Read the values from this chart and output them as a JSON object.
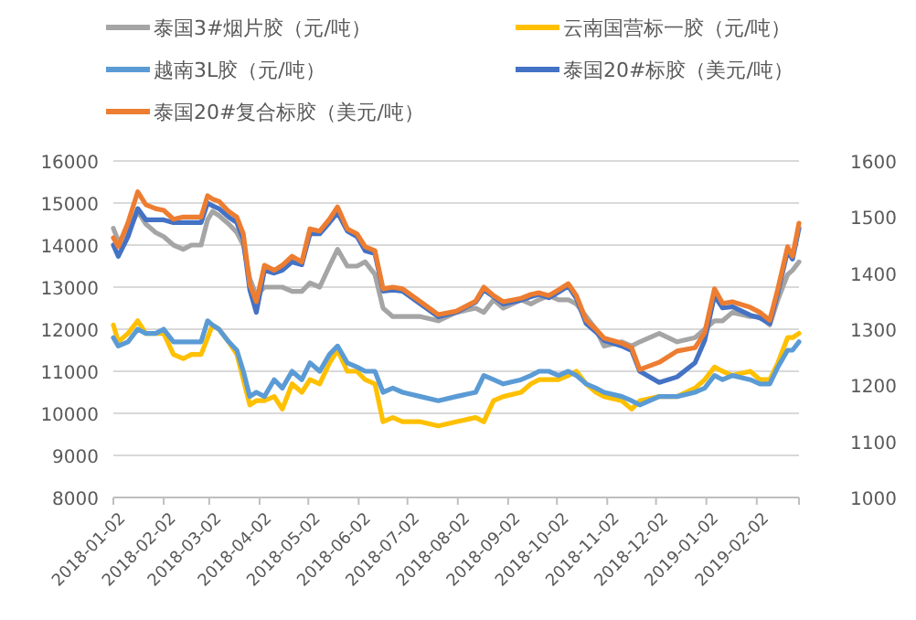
{
  "chart_data": {
    "type": "line",
    "legend": "top",
    "grid": "y",
    "line_style": "solid",
    "xlim": [
      "2018-01-02",
      "2019-02-28"
    ],
    "xticks": [
      "2018-01-02",
      "2018-02-02",
      "2018-03-02",
      "2018-04-02",
      "2018-05-02",
      "2018-06-02",
      "2018-07-02",
      "2018-08-02",
      "2018-09-02",
      "2018-10-02",
      "2018-11-02",
      "2018-12-02",
      "2019-01-02",
      "2019-02-02"
    ],
    "ylim": [
      8000,
      16000
    ],
    "yticks": [
      8000,
      9000,
      10000,
      11000,
      12000,
      13000,
      14000,
      15000,
      16000
    ],
    "y2lim": [
      1000,
      1600
    ],
    "y2ticks": [
      1000,
      1100,
      1200,
      1300,
      1400,
      1500,
      1600
    ],
    "x": [
      "2018-01-02",
      "2018-01-05",
      "2018-01-11",
      "2018-01-17",
      "2018-01-22",
      "2018-01-28",
      "2018-02-02",
      "2018-02-08",
      "2018-02-14",
      "2018-02-19",
      "2018-02-25",
      "2018-03-01",
      "2018-03-04",
      "2018-03-08",
      "2018-03-14",
      "2018-03-19",
      "2018-03-23",
      "2018-03-27",
      "2018-03-31",
      "2018-04-05",
      "2018-04-11",
      "2018-04-16",
      "2018-04-22",
      "2018-04-28",
      "2018-05-03",
      "2018-05-09",
      "2018-05-15",
      "2018-05-20",
      "2018-05-26",
      "2018-06-01",
      "2018-06-06",
      "2018-06-12",
      "2018-06-17",
      "2018-06-23",
      "2018-06-29",
      "2018-07-10",
      "2018-07-21",
      "2018-08-01",
      "2018-08-13",
      "2018-08-18",
      "2018-08-24",
      "2018-08-30",
      "2018-09-10",
      "2018-09-16",
      "2018-09-21",
      "2018-09-27",
      "2018-10-03",
      "2018-10-09",
      "2018-10-14",
      "2018-10-20",
      "2018-10-26",
      "2018-10-31",
      "2018-11-11",
      "2018-11-17",
      "2018-11-22",
      "2018-12-04",
      "2018-12-15",
      "2018-12-26",
      "2019-01-01",
      "2019-01-07",
      "2019-01-12",
      "2019-01-18",
      "2019-01-29",
      "2019-02-04",
      "2019-02-10",
      "2019-02-15",
      "2019-02-21",
      "2019-02-24",
      "2019-02-28"
    ],
    "series": [
      {
        "name": "泰国3#烟片胶（元/吨）",
        "color": "#a5a5a5",
        "values": [
          14400,
          14100,
          14300,
          14800,
          14500,
          14300,
          14200,
          14000,
          13900,
          14000,
          14000,
          14600,
          14800,
          14700,
          14500,
          14300,
          14000,
          13200,
          12800,
          13000,
          13000,
          13000,
          12900,
          12900,
          13100,
          13000,
          13500,
          13900,
          13500,
          13500,
          13600,
          13300,
          12500,
          12300,
          12300,
          12300,
          12200,
          12400,
          12500,
          12400,
          12700,
          12500,
          12700,
          12600,
          12700,
          12800,
          12700,
          12700,
          12600,
          12300,
          12000,
          11600,
          11700,
          11600,
          11700,
          11900,
          11700,
          11800,
          12000,
          12200,
          12200,
          12400,
          12300,
          12300,
          12100,
          12700,
          13300,
          13400,
          13600
        ]
      },
      {
        "name": "云南国营标一胶（元/吨）",
        "color": "#ffc000",
        "values": [
          12100,
          11700,
          11900,
          12200,
          11900,
          11900,
          11900,
          11400,
          11300,
          11400,
          11400,
          11800,
          12100,
          12000,
          11700,
          11400,
          10800,
          10200,
          10300,
          10300,
          10400,
          10100,
          10700,
          10500,
          10800,
          10700,
          11200,
          11500,
          11000,
          11000,
          10800,
          10700,
          9800,
          9900,
          9800,
          9800,
          9700,
          9800,
          9900,
          9800,
          10300,
          10400,
          10500,
          10700,
          10800,
          10800,
          10800,
          10900,
          11000,
          10700,
          10500,
          10400,
          10300,
          10100,
          10300,
          10400,
          10400,
          10600,
          10800,
          11100,
          11000,
          10900,
          11000,
          10800,
          10800,
          11200,
          11800,
          11800,
          11900
        ]
      },
      {
        "name": "越南3L胶（元/吨）",
        "color": "#5b9bd5",
        "values": [
          11800,
          11600,
          11700,
          12000,
          11900,
          11900,
          12000,
          11700,
          11700,
          11700,
          11700,
          12200,
          12100,
          12000,
          11700,
          11500,
          11000,
          10400,
          10500,
          10400,
          10800,
          10600,
          11000,
          10800,
          11200,
          11000,
          11400,
          11600,
          11200,
          11100,
          11000,
          11000,
          10500,
          10600,
          10500,
          10400,
          10300,
          10400,
          10500,
          10900,
          10800,
          10700,
          10800,
          10900,
          11000,
          11000,
          10900,
          11000,
          10900,
          10700,
          10600,
          10500,
          10400,
          10300,
          10200,
          10400,
          10400,
          10500,
          10600,
          10900,
          10800,
          10900,
          10800,
          10700,
          10700,
          11100,
          11500,
          11500,
          11700
        ]
      },
      {
        "name": "泰国20#标胶（美元/吨）",
        "color": "#4472c4",
        "axis": "y2",
        "values": [
          1450,
          1430,
          1465,
          1515,
          1495,
          1495,
          1495,
          1490,
          1490,
          1490,
          1490,
          1525,
          1520,
          1515,
          1500,
          1490,
          1460,
          1370,
          1330,
          1405,
          1400,
          1405,
          1420,
          1415,
          1470,
          1470,
          1490,
          1508,
          1475,
          1465,
          1440,
          1435,
          1368,
          1370,
          1368,
          1345,
          1322,
          1330,
          1348,
          1370,
          1358,
          1345,
          1352,
          1358,
          1362,
          1356,
          1366,
          1377,
          1355,
          1310,
          1295,
          1280,
          1270,
          1262,
          1225,
          1205,
          1215,
          1240,
          1280,
          1360,
          1338,
          1340,
          1325,
          1320,
          1310,
          1365,
          1440,
          1425,
          1480
        ]
      },
      {
        "name": "泰国20#复合标胶（美元/吨）",
        "color": "#ed7d31",
        "axis": "y2",
        "values": [
          1463,
          1447,
          1490,
          1545,
          1522,
          1515,
          1512,
          1496,
          1500,
          1500,
          1500,
          1538,
          1532,
          1528,
          1510,
          1500,
          1470,
          1380,
          1349,
          1414,
          1405,
          1414,
          1430,
          1420,
          1479,
          1475,
          1496,
          1518,
          1479,
          1470,
          1447,
          1440,
          1372,
          1375,
          1372,
          1349,
          1326,
          1332,
          1350,
          1375,
          1360,
          1349,
          1355,
          1362,
          1365,
          1360,
          1370,
          1381,
          1360,
          1316,
          1300,
          1284,
          1275,
          1267,
          1228,
          1241,
          1261,
          1267,
          1294,
          1372,
          1346,
          1349,
          1339,
          1330,
          1316,
          1372,
          1447,
          1430,
          1489
        ]
      }
    ]
  }
}
